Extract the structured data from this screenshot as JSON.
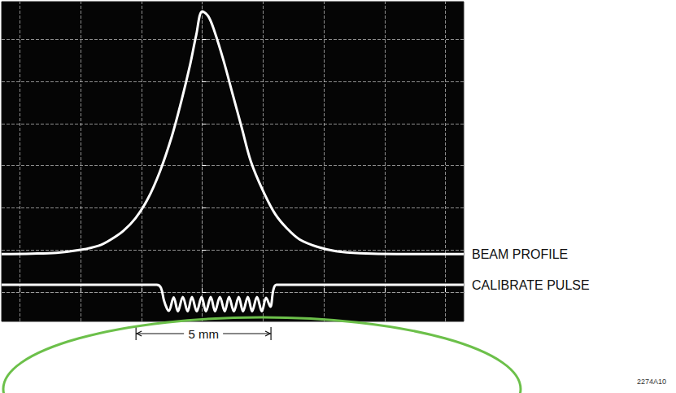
{
  "chart_data": {
    "type": "line",
    "xlim": [
      -3.3,
      4.3
    ],
    "ylim": [
      -0.7,
      6.9
    ],
    "xticks": [
      -3,
      -2,
      -1,
      0,
      1,
      2,
      3,
      4
    ],
    "yticks": [
      0,
      1,
      2,
      3,
      4,
      5,
      6
    ],
    "grid": true,
    "tick_labels": false,
    "series": [
      {
        "name": "BEAM PROFILE",
        "color": "#ffffff",
        "line_style": "solid",
        "x": [
          -3.3,
          -2.8,
          -2.4,
          -2.0,
          -1.7,
          -1.5,
          -1.3,
          -1.1,
          -0.9,
          -0.7,
          -0.5,
          -0.35,
          -0.2,
          -0.1,
          0,
          0.1,
          0.2,
          0.35,
          0.5,
          0.65,
          0.8,
          1.0,
          1.2,
          1.4,
          1.6,
          1.9,
          2.2,
          2.6,
          3.2,
          4.3
        ],
        "values": [
          0.9,
          0.91,
          0.93,
          1.0,
          1.1,
          1.25,
          1.45,
          1.75,
          2.2,
          2.85,
          3.7,
          4.5,
          5.4,
          6.1,
          6.67,
          6.55,
          6.2,
          5.5,
          4.7,
          3.9,
          3.1,
          2.4,
          1.85,
          1.5,
          1.25,
          1.07,
          0.97,
          0.92,
          0.9,
          0.9
        ]
      },
      {
        "name": "CALIBRATE PULSE",
        "color": "#ffffff",
        "line_style": "solid",
        "x": [
          -3.3,
          -0.75,
          -0.68,
          -0.63,
          -0.58,
          -0.55,
          -0.47,
          -0.4,
          -0.32,
          -0.24,
          -0.17,
          -0.09,
          -0.01,
          0.06,
          0.14,
          0.21,
          0.29,
          0.37,
          0.44,
          0.52,
          0.6,
          0.67,
          0.75,
          0.82,
          0.9,
          0.98,
          1.05,
          1.12,
          1.17,
          1.22,
          4.3
        ],
        "values": [
          0.17,
          0.17,
          0.1,
          -0.2,
          -0.4,
          -0.45,
          -0.13,
          -0.46,
          -0.12,
          -0.46,
          -0.12,
          -0.46,
          -0.12,
          -0.46,
          -0.12,
          -0.46,
          -0.12,
          -0.46,
          -0.12,
          -0.46,
          -0.12,
          -0.46,
          -0.12,
          -0.46,
          -0.12,
          -0.46,
          -0.14,
          -0.35,
          0.05,
          0.17,
          0.17
        ]
      }
    ],
    "annotations": [
      {
        "text": "5 mm",
        "x_start": -1.09,
        "x_end": 1.13
      },
      {
        "text": "2274A10"
      }
    ]
  }
}
